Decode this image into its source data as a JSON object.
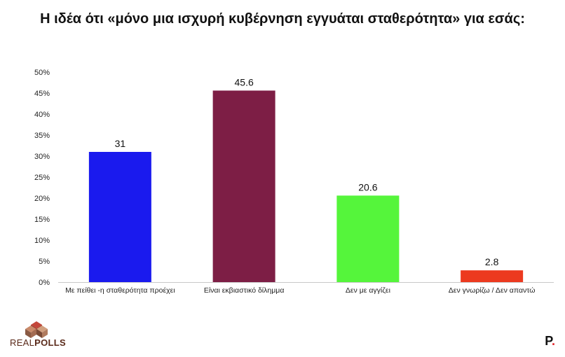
{
  "chart_data": {
    "type": "bar",
    "title": "Η ιδέα ότι «μόνο μια ισχυρή κυβέρνηση εγγυάται σταθερότητα» για εσάς:",
    "categories": [
      "Με πείθει -η σταθερότητα προέχει",
      "Είναι εκβιαστικό δίλημμα",
      "Δεν με αγγίζει",
      "Δεν γνωρίζω /  Δεν απαντώ"
    ],
    "values": [
      31,
      45.6,
      20.6,
      2.8
    ],
    "value_labels": [
      "31",
      "45.6",
      "20.6",
      "2.8"
    ],
    "colors": [
      "#1a1aee",
      "#7d1e45",
      "#55f53b",
      "#ec3a1f"
    ],
    "ylim": [
      0,
      50
    ],
    "yticks": [
      0,
      5,
      10,
      15,
      20,
      25,
      30,
      35,
      40,
      45,
      50
    ],
    "ytick_labels": [
      "0%",
      "5%",
      "10%",
      "15%",
      "20%",
      "25%",
      "30%",
      "35%",
      "40%",
      "45%",
      "50%"
    ],
    "xlabel": "",
    "ylabel": "",
    "grid": false,
    "legend": "none"
  },
  "branding": {
    "logo_text_light": "REAL",
    "logo_text_bold": "POLLS",
    "publisher_letter": "P",
    "publisher_dot": "."
  }
}
